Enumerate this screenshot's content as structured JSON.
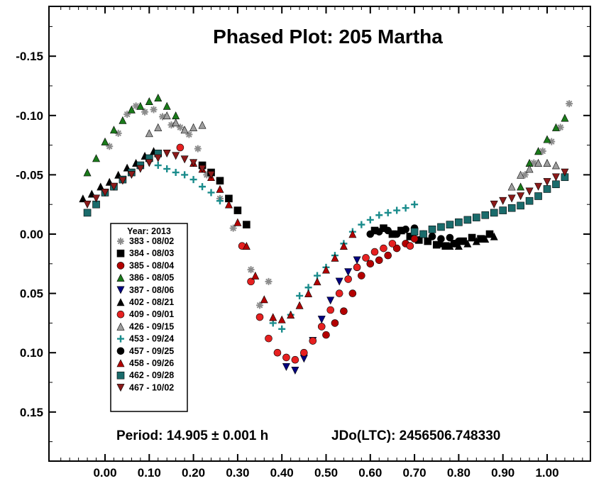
{
  "chart_data": {
    "type": "scatter",
    "title": "Phased Plot: 205 Martha",
    "xlabel": "",
    "ylabel": "",
    "xlim": [
      -0.12,
      1.12
    ],
    "ylim": [
      0.19,
      -0.195
    ],
    "y_inverted": true,
    "x_ticks": [
      0.0,
      0.1,
      0.2,
      0.3,
      0.4,
      0.5,
      0.6,
      0.7,
      0.8,
      0.9,
      1.0
    ],
    "x_tick_labels": [
      "0.00",
      "0.10",
      "0.20",
      "0.30",
      "0.40",
      "0.50",
      "0.60",
      "0.70",
      "0.80",
      "0.90",
      "1.00"
    ],
    "y_ticks": [
      -0.15,
      -0.1,
      -0.05,
      0.0,
      0.05,
      0.1,
      0.15
    ],
    "y_tick_labels": [
      "-0.15",
      "-0.10",
      "-0.05",
      "0.00",
      "0.05",
      "0.10",
      "0.15"
    ],
    "grid": false,
    "legend": {
      "placement": "lower-left",
      "title": "Year: 2013"
    },
    "footer": {
      "period": "Period: 14.905 ± 0.001 h",
      "epoch": "JDo(LTC): 2456506.748330"
    },
    "series": [
      {
        "name": "383 - 08/02",
        "marker": "asterisk",
        "color": "#8c8c8c",
        "x": [
          0.01,
          0.03,
          0.05,
          0.07,
          0.09,
          0.11,
          0.13,
          0.15,
          0.17,
          0.19,
          0.21,
          0.23,
          0.26,
          0.29,
          0.33,
          0.35,
          0.37,
          0.95,
          0.97,
          0.99,
          1.01,
          1.03,
          1.05
        ],
        "y": [
          -0.074,
          -0.085,
          -0.101,
          -0.108,
          -0.103,
          -0.105,
          -0.099,
          -0.092,
          -0.09,
          -0.084,
          -0.072,
          -0.05,
          -0.03,
          -0.005,
          0.03,
          0.06,
          0.04,
          -0.05,
          -0.06,
          -0.07,
          -0.078,
          -0.09,
          -0.11
        ]
      },
      {
        "name": "384 - 08/03",
        "marker": "square",
        "color": "#000000",
        "x": [
          0.22,
          0.24,
          0.26,
          0.28,
          0.3,
          0.32,
          0.61,
          0.63,
          0.65,
          0.67,
          0.69,
          0.71,
          0.73,
          0.75,
          0.77,
          0.79,
          0.81,
          0.83,
          0.85,
          0.87
        ],
        "y": [
          -0.058,
          -0.052,
          -0.045,
          -0.03,
          -0.02,
          -0.008,
          -0.003,
          -0.005,
          0.0,
          -0.003,
          0.002,
          0.005,
          0.006,
          0.009,
          0.01,
          0.008,
          0.006,
          0.003,
          0.004,
          0.0
        ]
      },
      {
        "name": "385 - 08/04",
        "marker": "circle",
        "color": "#b30000",
        "x": [
          0.5,
          0.52,
          0.54,
          0.56,
          0.58,
          0.6,
          0.62,
          0.64,
          0.66,
          0.68,
          0.7
        ],
        "y": [
          0.085,
          0.075,
          0.065,
          0.05,
          0.035,
          0.025,
          0.022,
          0.018,
          0.012,
          0.008,
          0.004
        ]
      },
      {
        "name": "386 - 08/05",
        "marker": "triangle-up",
        "color": "#1a7a1a",
        "x": [
          -0.04,
          -0.02,
          0.0,
          0.02,
          0.04,
          0.06,
          0.08,
          0.1,
          0.12,
          0.14,
          0.16,
          0.94,
          0.96,
          0.98,
          1.0,
          1.02,
          1.04
        ],
        "y": [
          -0.052,
          -0.064,
          -0.078,
          -0.088,
          -0.096,
          -0.105,
          -0.108,
          -0.112,
          -0.115,
          -0.108,
          -0.1,
          -0.04,
          -0.06,
          -0.07,
          -0.08,
          -0.09,
          -0.098
        ]
      },
      {
        "name": "387 - 08/06",
        "marker": "triangle-down",
        "color": "#000080",
        "x": [
          0.41,
          0.43,
          0.45,
          0.47,
          0.49,
          0.51,
          0.53,
          0.55,
          0.57
        ],
        "y": [
          0.112,
          0.115,
          0.105,
          0.09,
          0.072,
          0.056,
          0.04,
          0.032,
          0.022
        ]
      },
      {
        "name": "402 - 08/21",
        "marker": "triangle-up",
        "color": "#000000",
        "x": [
          -0.05,
          -0.03,
          -0.01,
          0.01,
          0.03,
          0.05,
          0.07,
          0.09,
          0.11,
          0.76,
          0.78,
          0.8,
          0.82,
          0.84,
          0.86,
          0.88
        ],
        "y": [
          -0.03,
          -0.034,
          -0.04,
          -0.044,
          -0.05,
          -0.056,
          -0.06,
          -0.066,
          -0.07,
          0.008,
          0.01,
          0.01,
          0.008,
          0.006,
          0.004,
          0.002
        ]
      },
      {
        "name": "409 - 09/01",
        "marker": "circle",
        "color": "#e62020",
        "x": [
          0.17,
          0.31,
          0.33,
          0.35,
          0.37,
          0.39,
          0.41,
          0.43,
          0.45,
          0.47,
          0.49,
          0.51,
          0.53,
          0.55,
          0.57,
          0.59,
          0.61,
          0.63,
          0.65,
          0.69
        ],
        "y": [
          -0.073,
          0.01,
          0.04,
          0.07,
          0.088,
          0.1,
          0.104,
          0.106,
          0.1,
          0.09,
          0.078,
          0.064,
          0.05,
          0.038,
          0.028,
          0.02,
          0.015,
          0.012,
          0.008,
          0.01
        ]
      },
      {
        "name": "426 - 09/15",
        "marker": "triangle-up",
        "color": "#9e9e9e",
        "x": [
          0.1,
          0.12,
          0.14,
          0.16,
          0.18,
          0.2,
          0.22,
          0.92,
          0.94,
          0.96,
          0.98,
          1.0,
          1.02
        ],
        "y": [
          -0.085,
          -0.09,
          -0.1,
          -0.094,
          -0.088,
          -0.09,
          -0.092,
          -0.04,
          -0.05,
          -0.055,
          -0.06,
          -0.06,
          -0.058
        ]
      },
      {
        "name": "453 - 09/24",
        "marker": "plus",
        "color": "#1a8c8c",
        "x": [
          0.12,
          0.14,
          0.16,
          0.18,
          0.2,
          0.22,
          0.24,
          0.26,
          0.38,
          0.4,
          0.42,
          0.44,
          0.46,
          0.48,
          0.5,
          0.52,
          0.54,
          0.56,
          0.58,
          0.6,
          0.62,
          0.64,
          0.66,
          0.68,
          0.7
        ],
        "y": [
          -0.058,
          -0.055,
          -0.052,
          -0.05,
          -0.046,
          -0.04,
          -0.035,
          -0.028,
          0.075,
          0.08,
          0.068,
          0.052,
          0.045,
          0.035,
          0.028,
          0.018,
          0.008,
          -0.002,
          -0.008,
          -0.012,
          -0.016,
          -0.018,
          -0.02,
          -0.022,
          -0.025
        ]
      },
      {
        "name": "457 - 09/25",
        "marker": "circle",
        "color": "#000000",
        "x": [
          0.6,
          0.62,
          0.64,
          0.66,
          0.68,
          0.7,
          0.72,
          0.74,
          0.76,
          0.78,
          0.8
        ],
        "y": [
          0.0,
          -0.002,
          -0.003,
          0.0,
          -0.004,
          -0.005,
          0.0,
          0.002,
          0.004,
          0.003,
          0.006
        ]
      },
      {
        "name": "458 - 09/26",
        "marker": "triangle-up",
        "color": "#b30000",
        "x": [
          0.2,
          0.22,
          0.24,
          0.26,
          0.28,
          0.3,
          0.32,
          0.34,
          0.36,
          0.38,
          0.4,
          0.42,
          0.44,
          0.46,
          0.48,
          0.5,
          0.52,
          0.54,
          0.56
        ],
        "y": [
          -0.06,
          -0.055,
          -0.048,
          -0.038,
          -0.025,
          -0.01,
          0.01,
          0.035,
          0.055,
          0.07,
          0.072,
          0.068,
          0.06,
          0.05,
          0.04,
          0.03,
          0.02,
          0.01,
          0.0
        ]
      },
      {
        "name": "462 - 09/28",
        "marker": "square",
        "color": "#1a6b6b",
        "x": [
          -0.04,
          -0.02,
          0.0,
          0.02,
          0.04,
          0.06,
          0.08,
          0.1,
          0.12,
          0.7,
          0.72,
          0.74,
          0.76,
          0.78,
          0.8,
          0.82,
          0.84,
          0.86,
          0.88,
          0.9,
          0.92,
          0.94,
          0.96,
          0.98,
          1.0,
          1.02,
          1.04
        ],
        "y": [
          -0.018,
          -0.025,
          -0.035,
          -0.04,
          -0.046,
          -0.052,
          -0.058,
          -0.064,
          -0.068,
          -0.002,
          0.0,
          -0.004,
          -0.006,
          -0.008,
          -0.01,
          -0.012,
          -0.014,
          -0.016,
          -0.018,
          -0.02,
          -0.022,
          -0.024,
          -0.028,
          -0.032,
          -0.038,
          -0.042,
          -0.048
        ]
      },
      {
        "name": "467 - 10/02",
        "marker": "triangle-down",
        "color": "#8b1a1a",
        "x": [
          -0.04,
          -0.02,
          0.0,
          0.02,
          0.04,
          0.06,
          0.08,
          0.1,
          0.12,
          0.14,
          0.16,
          0.18,
          0.2,
          0.22,
          0.24,
          0.88,
          0.9,
          0.92,
          0.94,
          0.96,
          0.98,
          1.0,
          1.02,
          1.04
        ],
        "y": [
          -0.025,
          -0.03,
          -0.035,
          -0.04,
          -0.045,
          -0.05,
          -0.055,
          -0.06,
          -0.064,
          -0.068,
          -0.066,
          -0.063,
          -0.06,
          -0.055,
          -0.05,
          -0.025,
          -0.028,
          -0.03,
          -0.032,
          -0.036,
          -0.04,
          -0.044,
          -0.048,
          -0.052
        ]
      }
    ]
  }
}
